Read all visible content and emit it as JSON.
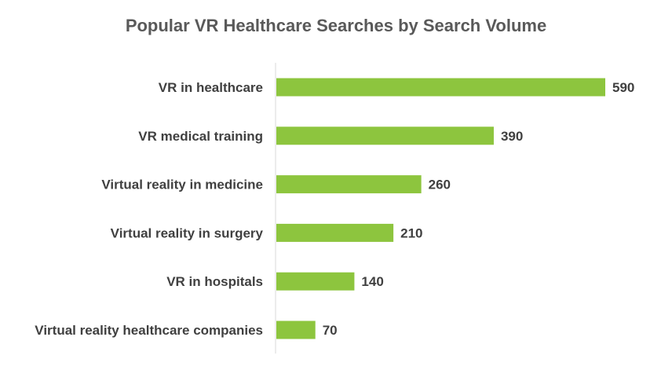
{
  "chart_data": {
    "type": "bar",
    "orientation": "horizontal",
    "title": "Popular VR Healthcare Searches by Search Volume",
    "categories": [
      "VR in healthcare",
      "VR medical training",
      "Virtual reality in medicine",
      "Virtual reality in surgery",
      "VR in hospitals",
      "Virtual reality healthcare companies"
    ],
    "values": [
      590,
      390,
      260,
      210,
      140,
      70
    ],
    "xlim": [
      0,
      590
    ],
    "grid": false,
    "data_labels": true,
    "colors": {
      "bar": "#8dc53e",
      "axis": "#d9d9d9",
      "title": "#595959",
      "text": "#404040"
    }
  }
}
